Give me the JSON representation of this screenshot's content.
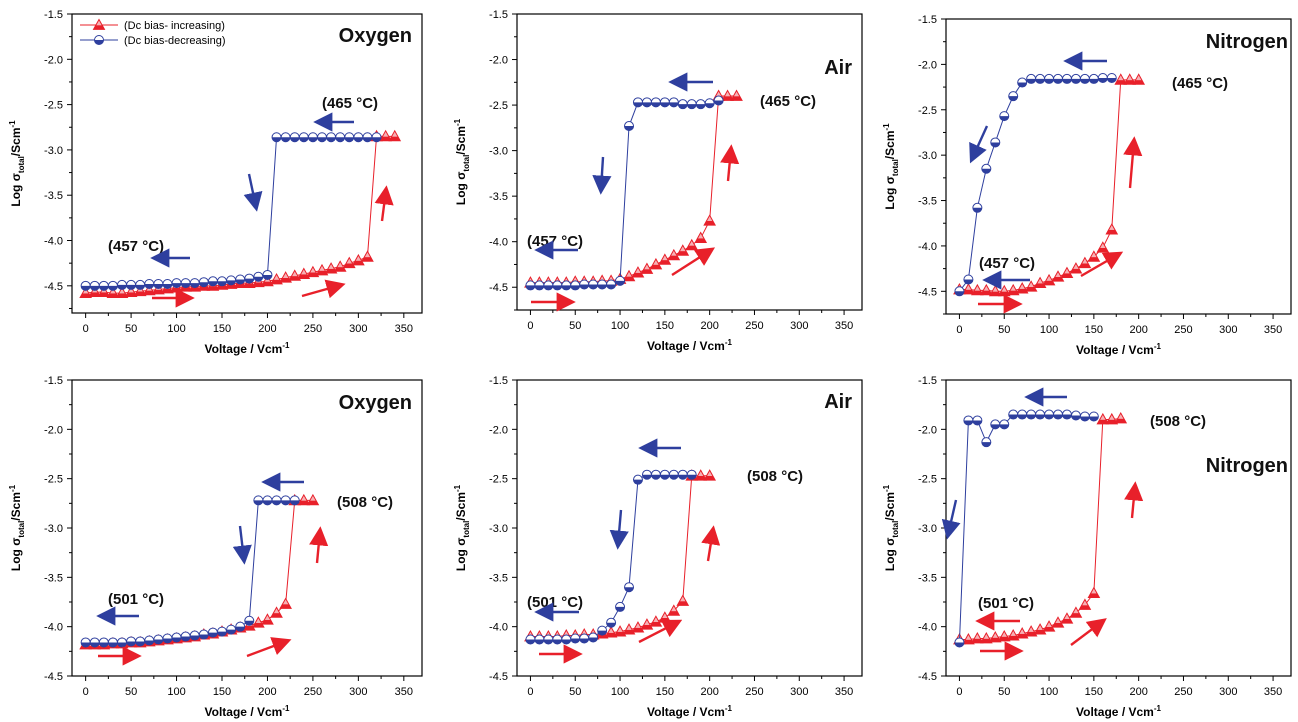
{
  "figure": {
    "legend": {
      "increasing": "(Dc bias- increasing)",
      "decreasing": "(Dc bias-decreasing)"
    },
    "colors": {
      "increasing": "#e8202a",
      "decreasing": "#2e3f9e"
    },
    "xlabel_base": "Voltage / Vcm",
    "xlabel_sup": "-1",
    "ylabel_parts": {
      "log": "Log σ",
      "sub": "total",
      "unit": "/Scm",
      "sup": "-1"
    }
  },
  "chart_data": [
    {
      "type": "line",
      "gas": "Oxygen",
      "temp_high": "(465 °C)",
      "temp_low": "(457 °C)",
      "xlim": [
        -15,
        370
      ],
      "ylim": [
        -4.8,
        -1.5
      ],
      "xticks": [
        "0",
        "50",
        "100",
        "150",
        "200",
        "250",
        "300",
        "350"
      ],
      "yticks": [
        "-1.5",
        "-2.0",
        "-2.5",
        "-3.0",
        "-3.5",
        "-4.0",
        "-4.5"
      ],
      "series": [
        {
          "name": "(Dc bias- increasing)",
          "x": [
            0,
            10,
            20,
            30,
            40,
            50,
            60,
            70,
            80,
            90,
            100,
            110,
            120,
            130,
            140,
            150,
            160,
            170,
            180,
            190,
            200,
            210,
            220,
            230,
            240,
            250,
            260,
            270,
            280,
            290,
            300,
            310,
            320,
            330,
            340
          ],
          "y": [
            -4.58,
            -4.57,
            -4.57,
            -4.58,
            -4.58,
            -4.57,
            -4.56,
            -4.55,
            -4.54,
            -4.53,
            -4.52,
            -4.51,
            -4.51,
            -4.5,
            -4.5,
            -4.49,
            -4.48,
            -4.47,
            -4.47,
            -4.46,
            -4.45,
            -4.43,
            -4.41,
            -4.39,
            -4.37,
            -4.35,
            -4.33,
            -4.31,
            -4.29,
            -4.25,
            -4.22,
            -4.18,
            -2.85,
            -2.85,
            -2.85
          ]
        },
        {
          "name": "(Dc bias-decreasing)",
          "x": [
            0,
            10,
            20,
            30,
            40,
            50,
            60,
            70,
            80,
            90,
            100,
            110,
            120,
            130,
            140,
            150,
            160,
            170,
            180,
            190,
            200,
            210,
            220,
            230,
            240,
            250,
            260,
            270,
            280,
            290,
            300,
            310,
            320
          ],
          "y": [
            -4.5,
            -4.5,
            -4.5,
            -4.5,
            -4.49,
            -4.49,
            -4.49,
            -4.48,
            -4.48,
            -4.48,
            -4.47,
            -4.47,
            -4.47,
            -4.46,
            -4.45,
            -4.45,
            -4.44,
            -4.43,
            -4.42,
            -4.4,
            -4.38,
            -2.86,
            -2.86,
            -2.86,
            -2.86,
            -2.86,
            -2.86,
            -2.86,
            -2.86,
            -2.86,
            -2.86,
            -2.86,
            -2.86
          ]
        }
      ]
    },
    {
      "type": "line",
      "gas": "Air",
      "temp_high": "(465 °C)",
      "temp_low": "(457 °C)",
      "xlim": [
        -15,
        370
      ],
      "ylim": [
        -4.75,
        -1.5
      ],
      "xticks": [
        "0",
        "50",
        "100",
        "150",
        "200",
        "250",
        "300",
        "350"
      ],
      "yticks": [
        "-1.5",
        "-2.0",
        "-2.5",
        "-3.0",
        "-3.5",
        "-4.0",
        "-4.5"
      ],
      "series": [
        {
          "name": "(Dc bias- increasing)",
          "x": [
            0,
            10,
            20,
            30,
            40,
            50,
            60,
            70,
            80,
            90,
            100,
            110,
            120,
            130,
            140,
            150,
            160,
            170,
            180,
            190,
            200,
            210,
            220,
            230
          ],
          "y": [
            -4.45,
            -4.45,
            -4.45,
            -4.45,
            -4.45,
            -4.44,
            -4.44,
            -4.44,
            -4.43,
            -4.43,
            -4.41,
            -4.38,
            -4.34,
            -4.3,
            -4.25,
            -4.2,
            -4.15,
            -4.1,
            -4.04,
            -3.96,
            -3.77,
            -2.4,
            -2.4,
            -2.4
          ]
        },
        {
          "name": "(Dc bias-decreasing)",
          "x": [
            0,
            10,
            20,
            30,
            40,
            50,
            60,
            70,
            80,
            90,
            100,
            110,
            120,
            130,
            140,
            150,
            160,
            170,
            180,
            190,
            200,
            210
          ],
          "y": [
            -4.48,
            -4.48,
            -4.48,
            -4.48,
            -4.48,
            -4.48,
            -4.47,
            -4.47,
            -4.47,
            -4.47,
            -4.43,
            -2.73,
            -2.47,
            -2.47,
            -2.47,
            -2.47,
            -2.47,
            -2.49,
            -2.49,
            -2.49,
            -2.48,
            -2.45
          ]
        }
      ]
    },
    {
      "type": "line",
      "gas": "Nitrogen",
      "temp_high": "(465 °C)",
      "temp_low": "(457 °C)",
      "xlim": [
        -15,
        370
      ],
      "ylim": [
        -4.75,
        -1.5
      ],
      "xticks": [
        "0",
        "50",
        "100",
        "150",
        "200",
        "250",
        "300",
        "350"
      ],
      "yticks": [
        "-1.5",
        "-2.0",
        "-2.5",
        "-3.0",
        "-3.5",
        "-4.0",
        "-4.5"
      ],
      "series": [
        {
          "name": "(Dc bias- increasing)",
          "x": [
            0,
            10,
            20,
            30,
            40,
            50,
            60,
            70,
            80,
            90,
            100,
            110,
            120,
            130,
            140,
            150,
            160,
            170,
            180,
            190,
            200
          ],
          "y": [
            -4.48,
            -4.48,
            -4.49,
            -4.49,
            -4.5,
            -4.5,
            -4.49,
            -4.47,
            -4.45,
            -4.41,
            -4.38,
            -4.34,
            -4.3,
            -4.25,
            -4.19,
            -4.12,
            -4.02,
            -3.82,
            -2.17,
            -2.17,
            -2.17
          ]
        },
        {
          "name": "(Dc bias-decreasing)",
          "x": [
            0,
            10,
            20,
            30,
            40,
            50,
            60,
            70,
            80,
            90,
            100,
            110,
            120,
            130,
            140,
            150,
            160,
            170
          ],
          "y": [
            -4.5,
            -4.37,
            -3.58,
            -3.15,
            -2.86,
            -2.57,
            -2.35,
            -2.2,
            -2.16,
            -2.16,
            -2.16,
            -2.16,
            -2.16,
            -2.16,
            -2.16,
            -2.16,
            -2.15,
            -2.15
          ]
        }
      ]
    },
    {
      "type": "line",
      "gas": "Oxygen",
      "temp_high": "(508 °C)",
      "temp_low": "(501 °C)",
      "xlim": [
        -15,
        370
      ],
      "ylim": [
        -4.5,
        -1.5
      ],
      "xticks": [
        "0",
        "50",
        "100",
        "150",
        "200",
        "250",
        "300",
        "350"
      ],
      "yticks": [
        "-1.5",
        "-2.0",
        "-2.5",
        "-3.0",
        "-3.5",
        "-4.0",
        "-4.5"
      ],
      "series": [
        {
          "name": "(Dc bias- increasing)",
          "x": [
            0,
            10,
            20,
            30,
            40,
            50,
            60,
            70,
            80,
            90,
            100,
            110,
            120,
            130,
            140,
            150,
            160,
            170,
            180,
            190,
            200,
            210,
            220,
            230,
            240,
            250
          ],
          "y": [
            -4.18,
            -4.18,
            -4.18,
            -4.17,
            -4.17,
            -4.16,
            -4.16,
            -4.15,
            -4.14,
            -4.13,
            -4.12,
            -4.11,
            -4.1,
            -4.08,
            -4.07,
            -4.05,
            -4.03,
            -4.01,
            -3.99,
            -3.96,
            -3.93,
            -3.86,
            -3.77,
            -2.72,
            -2.72,
            -2.72
          ]
        },
        {
          "name": "(Dc bias-decreasing)",
          "x": [
            0,
            10,
            20,
            30,
            40,
            50,
            60,
            70,
            80,
            90,
            100,
            110,
            120,
            130,
            140,
            150,
            160,
            170,
            180,
            190,
            200,
            210,
            220,
            230
          ],
          "y": [
            -4.16,
            -4.16,
            -4.16,
            -4.16,
            -4.16,
            -4.15,
            -4.15,
            -4.14,
            -4.13,
            -4.12,
            -4.11,
            -4.1,
            -4.09,
            -4.08,
            -4.06,
            -4.05,
            -4.03,
            -4.0,
            -3.94,
            -2.72,
            -2.72,
            -2.72,
            -2.72,
            -2.72
          ]
        }
      ]
    },
    {
      "type": "line",
      "gas": "Air",
      "temp_high": "(508 °C)",
      "temp_low": "(501 °C)",
      "xlim": [
        -15,
        370
      ],
      "ylim": [
        -4.5,
        -1.5
      ],
      "xticks": [
        "0",
        "50",
        "100",
        "150",
        "200",
        "250",
        "300",
        "350"
      ],
      "yticks": [
        "-1.5",
        "-2.0",
        "-2.5",
        "-3.0",
        "-3.5",
        "-4.0",
        "-4.5"
      ],
      "series": [
        {
          "name": "(Dc bias- increasing)",
          "x": [
            0,
            10,
            20,
            30,
            40,
            50,
            60,
            70,
            80,
            90,
            100,
            110,
            120,
            130,
            140,
            150,
            160,
            170,
            180,
            190,
            200
          ],
          "y": [
            -4.1,
            -4.1,
            -4.1,
            -4.1,
            -4.09,
            -4.09,
            -4.08,
            -4.08,
            -4.07,
            -4.06,
            -4.05,
            -4.03,
            -4.01,
            -3.98,
            -3.95,
            -3.91,
            -3.84,
            -3.74,
            -2.47,
            -2.47,
            -2.47
          ]
        },
        {
          "name": "(Dc bias-decreasing)",
          "x": [
            0,
            10,
            20,
            30,
            40,
            50,
            60,
            70,
            80,
            90,
            100,
            110,
            120,
            130,
            140,
            150,
            160,
            170,
            180
          ],
          "y": [
            -4.13,
            -4.13,
            -4.13,
            -4.13,
            -4.13,
            -4.12,
            -4.12,
            -4.11,
            -4.04,
            -3.96,
            -3.8,
            -3.6,
            -2.51,
            -2.46,
            -2.46,
            -2.46,
            -2.46,
            -2.46,
            -2.46
          ]
        }
      ]
    },
    {
      "type": "line",
      "gas": "Nitrogen",
      "temp_high": "(508 °C)",
      "temp_low": "(501 °C)",
      "xlim": [
        -15,
        370
      ],
      "ylim": [
        -4.5,
        -1.5
      ],
      "xticks": [
        "0",
        "50",
        "100",
        "150",
        "200",
        "250",
        "300",
        "350"
      ],
      "yticks": [
        "-1.5",
        "-2.0",
        "-2.5",
        "-3.0",
        "-3.5",
        "-4.0",
        "-4.5"
      ],
      "series": [
        {
          "name": "(Dc bias- increasing)",
          "x": [
            0,
            10,
            20,
            30,
            40,
            50,
            60,
            70,
            80,
            90,
            100,
            110,
            120,
            130,
            140,
            150,
            160,
            170,
            180
          ],
          "y": [
            -4.13,
            -4.13,
            -4.12,
            -4.12,
            -4.11,
            -4.1,
            -4.09,
            -4.07,
            -4.05,
            -4.03,
            -4.0,
            -3.96,
            -3.92,
            -3.86,
            -3.78,
            -3.66,
            -1.9,
            -1.9,
            -1.89
          ]
        },
        {
          "name": "(Dc bias-decreasing)",
          "x": [
            0,
            10,
            20,
            30,
            40,
            50,
            60,
            70,
            80,
            90,
            100,
            110,
            120,
            130,
            140,
            150
          ],
          "y": [
            -4.16,
            -1.91,
            -1.91,
            -2.13,
            -1.95,
            -1.95,
            -1.85,
            -1.85,
            -1.85,
            -1.85,
            -1.85,
            -1.85,
            -1.85,
            -1.86,
            -1.87,
            -1.87
          ]
        }
      ]
    }
  ]
}
